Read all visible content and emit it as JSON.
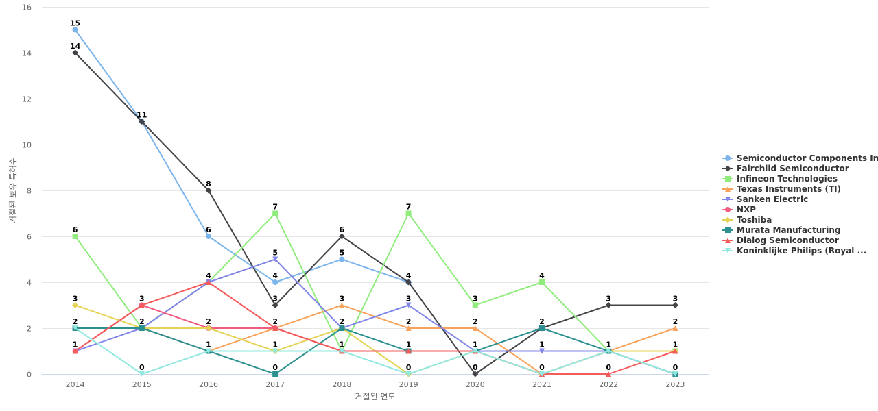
{
  "chart_data": {
    "type": "line",
    "title": "",
    "xlabel": "거절된 연도",
    "ylabel": "거절된 보유 특허수",
    "x": [
      "2014",
      "2015",
      "2016",
      "2017",
      "2018",
      "2019",
      "2020",
      "2021",
      "2022",
      "2023"
    ],
    "ylim": [
      0,
      16
    ],
    "yticks": [
      0,
      2,
      4,
      6,
      8,
      10,
      12,
      14,
      16
    ],
    "grid": true,
    "legend_position": "right",
    "series": [
      {
        "name": "Semiconductor Components In...",
        "color": "#7cb5ec",
        "marker": "circle",
        "values": [
          15,
          11,
          6,
          4,
          5,
          4,
          null,
          null,
          null,
          null
        ]
      },
      {
        "name": "Fairchild Semiconductor",
        "color": "#434348",
        "marker": "diamond",
        "values": [
          14,
          11,
          8,
          3,
          6,
          4,
          0,
          2,
          3,
          3
        ]
      },
      {
        "name": "Infineon Technologies",
        "color": "#90ed7d",
        "marker": "square",
        "values": [
          6,
          2,
          4,
          7,
          1,
          7,
          3,
          4,
          1,
          1
        ]
      },
      {
        "name": "Texas Instruments (TI)",
        "color": "#f7a35c",
        "marker": "triangle",
        "values": [
          2,
          2,
          1,
          2,
          3,
          2,
          2,
          0,
          1,
          2
        ]
      },
      {
        "name": "Sanken Electric",
        "color": "#8085e9",
        "marker": "triangle-down",
        "values": [
          1,
          2,
          4,
          5,
          2,
          3,
          1,
          1,
          1,
          0
        ]
      },
      {
        "name": "NXP",
        "color": "#f15c80",
        "marker": "circle",
        "values": [
          1,
          3,
          2,
          2,
          1,
          1,
          1,
          0,
          1,
          0
        ]
      },
      {
        "name": "Toshiba",
        "color": "#e4d354",
        "marker": "diamond",
        "values": [
          3,
          2,
          2,
          1,
          2,
          0,
          1,
          0,
          1,
          1
        ]
      },
      {
        "name": "Murata Manufacturing",
        "color": "#2b908f",
        "marker": "square",
        "values": [
          2,
          2,
          1,
          0,
          2,
          1,
          1,
          2,
          1,
          0
        ]
      },
      {
        "name": "Dialog Semiconductor",
        "color": "#f45b5b",
        "marker": "triangle",
        "values": [
          1,
          3,
          4,
          2,
          1,
          1,
          1,
          0,
          0,
          1
        ]
      },
      {
        "name": "Koninklijke Philips (Royal ...",
        "color": "#91e8e1",
        "marker": "triangle-down",
        "values": [
          2,
          0,
          1,
          1,
          1,
          0,
          1,
          0,
          1,
          0
        ]
      }
    ],
    "data_labels": [
      {
        "x": "2014",
        "y": 15,
        "text": "15"
      },
      {
        "x": "2014",
        "y": 14,
        "text": "14"
      },
      {
        "x": "2014",
        "y": 6,
        "text": "6"
      },
      {
        "x": "2014",
        "y": 3,
        "text": "3"
      },
      {
        "x": "2014",
        "y": 2,
        "text": "2"
      },
      {
        "x": "2014",
        "y": 1,
        "text": "1"
      },
      {
        "x": "2015",
        "y": 11,
        "text": "11"
      },
      {
        "x": "2015",
        "y": 3,
        "text": "3"
      },
      {
        "x": "2015",
        "y": 2,
        "text": "2"
      },
      {
        "x": "2015",
        "y": 0,
        "text": "0"
      },
      {
        "x": "2016",
        "y": 8,
        "text": "8"
      },
      {
        "x": "2016",
        "y": 6,
        "text": "6"
      },
      {
        "x": "2016",
        "y": 4,
        "text": "4"
      },
      {
        "x": "2016",
        "y": 2,
        "text": "2"
      },
      {
        "x": "2016",
        "y": 1,
        "text": "1"
      },
      {
        "x": "2017",
        "y": 7,
        "text": "7"
      },
      {
        "x": "2017",
        "y": 5,
        "text": "5"
      },
      {
        "x": "2017",
        "y": 4,
        "text": "4"
      },
      {
        "x": "2017",
        "y": 3,
        "text": "3"
      },
      {
        "x": "2017",
        "y": 2,
        "text": "2"
      },
      {
        "x": "2017",
        "y": 1,
        "text": "1"
      },
      {
        "x": "2017",
        "y": 0,
        "text": "0"
      },
      {
        "x": "2018",
        "y": 6,
        "text": "6"
      },
      {
        "x": "2018",
        "y": 5,
        "text": "5"
      },
      {
        "x": "2018",
        "y": 3,
        "text": "3"
      },
      {
        "x": "2018",
        "y": 2,
        "text": "2"
      },
      {
        "x": "2018",
        "y": 1,
        "text": "1"
      },
      {
        "x": "2019",
        "y": 7,
        "text": "7"
      },
      {
        "x": "2019",
        "y": 4,
        "text": "4"
      },
      {
        "x": "2019",
        "y": 3,
        "text": "3"
      },
      {
        "x": "2019",
        "y": 2,
        "text": "2"
      },
      {
        "x": "2019",
        "y": 1,
        "text": "1"
      },
      {
        "x": "2019",
        "y": 0,
        "text": "0"
      },
      {
        "x": "2020",
        "y": 3,
        "text": "3"
      },
      {
        "x": "2020",
        "y": 2,
        "text": "2"
      },
      {
        "x": "2020",
        "y": 1,
        "text": "1"
      },
      {
        "x": "2020",
        "y": 0,
        "text": "0"
      },
      {
        "x": "2021",
        "y": 4,
        "text": "4"
      },
      {
        "x": "2021",
        "y": 2,
        "text": "2"
      },
      {
        "x": "2021",
        "y": 1,
        "text": "1"
      },
      {
        "x": "2021",
        "y": 0,
        "text": "0"
      },
      {
        "x": "2022",
        "y": 3,
        "text": "3"
      },
      {
        "x": "2022",
        "y": 1,
        "text": "1"
      },
      {
        "x": "2022",
        "y": 0,
        "text": "0"
      },
      {
        "x": "2023",
        "y": 3,
        "text": "3"
      },
      {
        "x": "2023",
        "y": 2,
        "text": "2"
      },
      {
        "x": "2023",
        "y": 1,
        "text": "1"
      },
      {
        "x": "2023",
        "y": 0,
        "text": "0"
      }
    ]
  }
}
